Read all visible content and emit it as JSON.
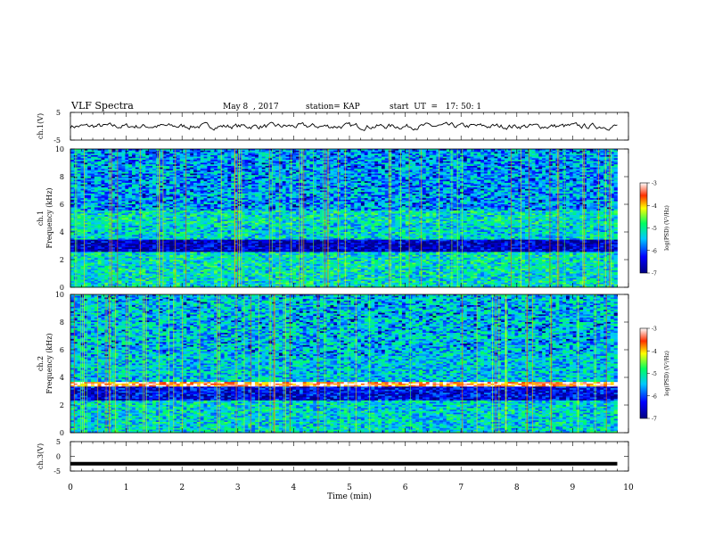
{
  "header": {
    "title": "VLF Spectra",
    "date": "May 8  , 2017",
    "station": "station= KAP",
    "start": "start  UT  =   17: 50: 1"
  },
  "chart_data": [
    {
      "type": "line",
      "name": "ch1-voltage",
      "ylabel": "ch.1(V)",
      "ylim": [
        -5,
        5
      ],
      "ytick_labels": [
        "5",
        "-5"
      ],
      "xlim": [
        0,
        10
      ],
      "x_extent": [
        0,
        9.8
      ],
      "y_baseline": 0,
      "y_noise": 1.2
    },
    {
      "type": "heatmap",
      "name": "ch1-spectrogram",
      "ylabel_line1": "ch.1",
      "ylabel_line2": "Frequency  (kHz)",
      "ylim": [
        0,
        10
      ],
      "ytick_labels": [
        "0",
        "2",
        "4",
        "6",
        "8",
        "10"
      ],
      "xlim": [
        0,
        10
      ],
      "x_extent": [
        0,
        9.8
      ],
      "colorbar": {
        "label": "log(PSD) (V²/Hz)",
        "range": [
          -7,
          -3
        ],
        "tick_labels": [
          "-3",
          "-4",
          "-5",
          "-6",
          "-7"
        ]
      },
      "bands": [
        {
          "f": [
            2.6,
            3.4
          ],
          "level": -6.6
        },
        {
          "f": [
            4.6,
            5.6
          ],
          "level": -5.2
        },
        {
          "f": [
            5.6,
            10
          ],
          "level": -5.6
        },
        {
          "f": [
            0,
            2.6
          ],
          "level": -5.2
        }
      ]
    },
    {
      "type": "heatmap",
      "name": "ch2-spectrogram",
      "ylabel_line1": "ch.2",
      "ylabel_line2": "Frequency  (kHz)",
      "ylim": [
        0,
        10
      ],
      "ytick_labels": [
        "0",
        "2",
        "4",
        "6",
        "8",
        "10"
      ],
      "xlim": [
        0,
        10
      ],
      "x_extent": [
        0,
        9.8
      ],
      "colorbar": {
        "label": "log(PSD) (V²/Hz)",
        "range": [
          -7,
          -3
        ],
        "tick_labels": [
          "-3",
          "-4",
          "-5",
          "-6",
          "-7"
        ]
      },
      "bands": [
        {
          "f": [
            3.3,
            3.7
          ],
          "level": -3.4
        },
        {
          "f": [
            2.3,
            3.3
          ],
          "level": -6.4
        },
        {
          "f": [
            3.7,
            10
          ],
          "level": -5.4
        },
        {
          "f": [
            0,
            2.3
          ],
          "level": -5.3
        }
      ]
    },
    {
      "type": "line",
      "name": "ch3-voltage",
      "ylabel": "ch.3(V)",
      "ylim": [
        -5,
        5
      ],
      "ytick_labels": [
        "5",
        "0",
        "-5"
      ],
      "xlim": [
        0,
        10
      ],
      "x_extent": [
        0,
        9.8
      ],
      "y_baseline": -2.5,
      "y_noise": 0
    }
  ],
  "xaxis": {
    "label": "Time  (min)",
    "ticks": [
      "0",
      "1",
      "2",
      "3",
      "4",
      "5",
      "6",
      "7",
      "8",
      "9",
      "10"
    ]
  }
}
